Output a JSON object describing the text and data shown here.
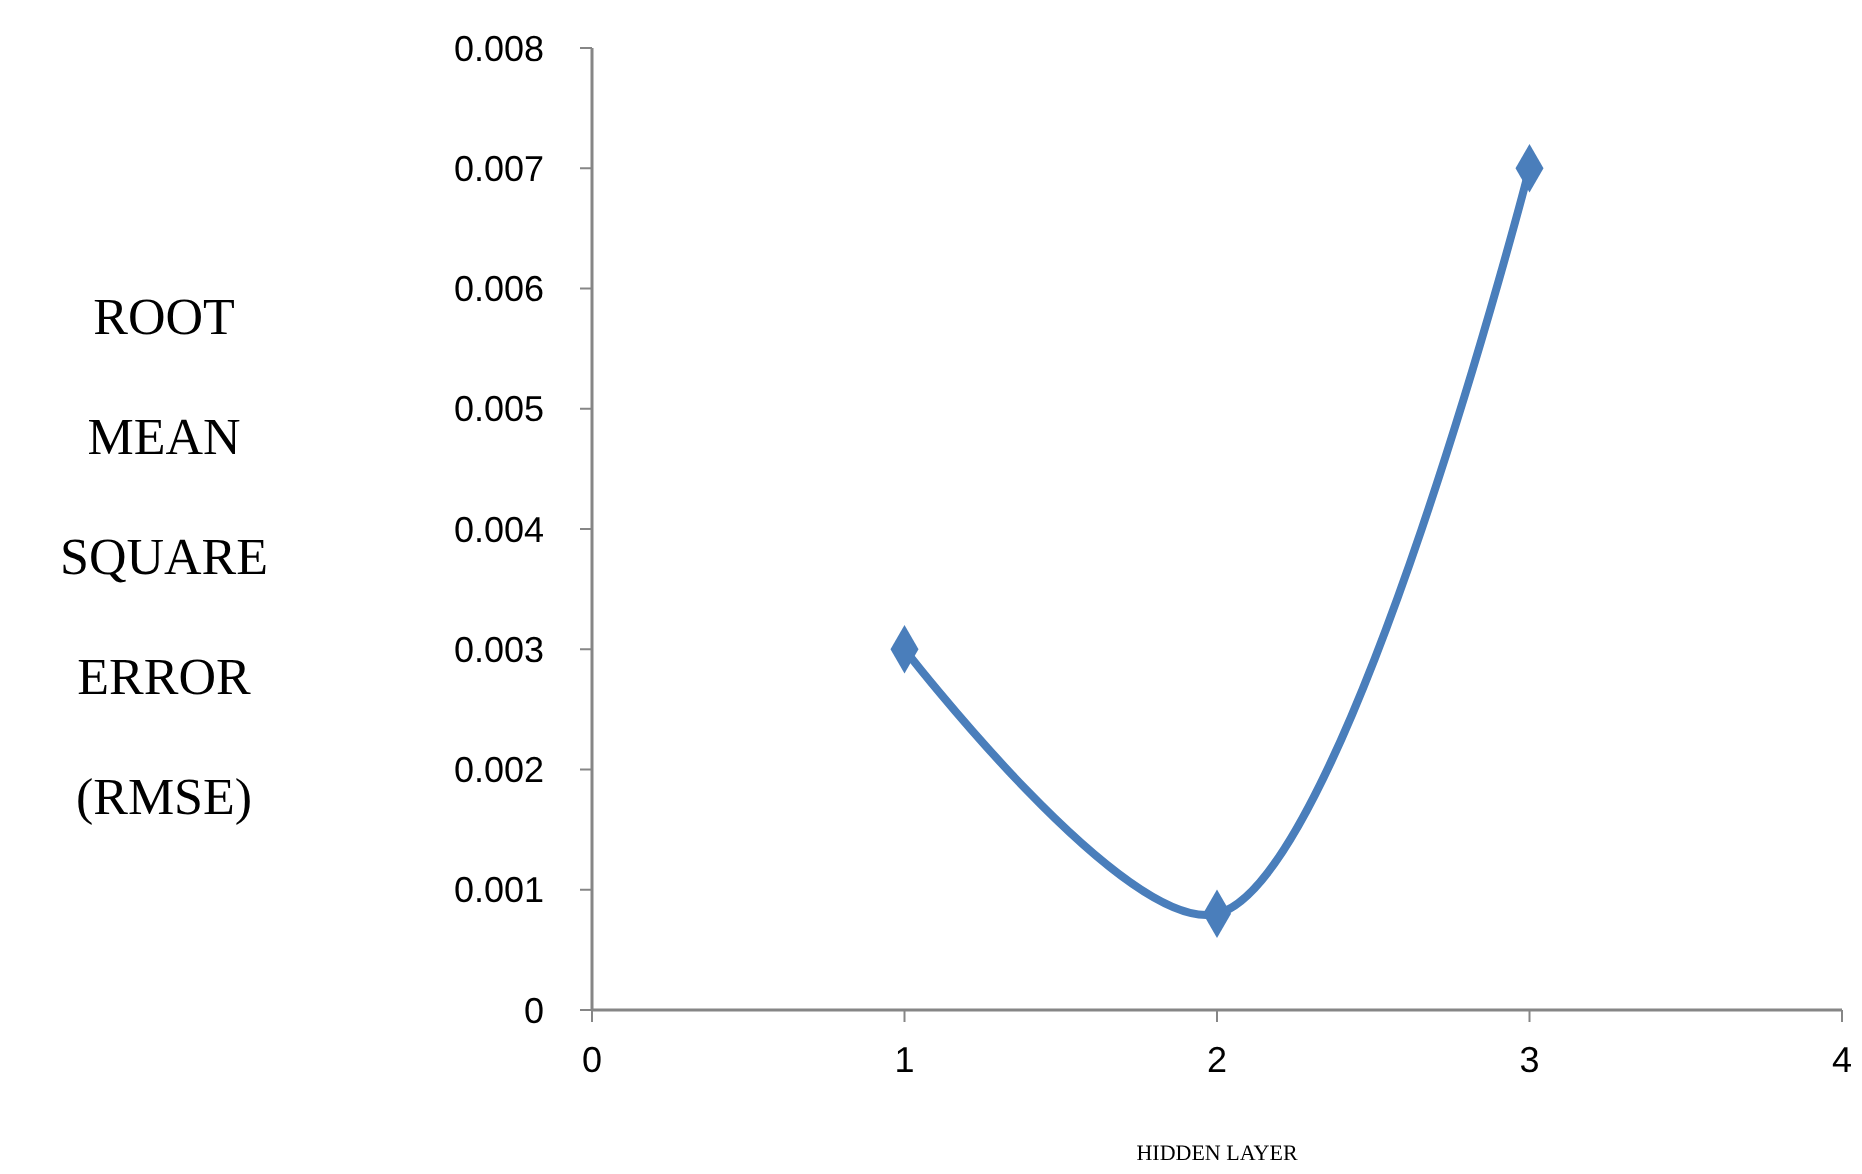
{
  "chart_data": {
    "type": "line",
    "xlabel": "HIDDEN LAYER",
    "ylabel": "ROOT MEAN SQUARE ERROR (RMSE)",
    "x": [
      1,
      2,
      3
    ],
    "series": [
      {
        "color": "#4a7ebb",
        "values": [
          0.003,
          0.0008,
          0.007
        ]
      }
    ],
    "xlim": [
      0,
      4
    ],
    "xticks": [
      0,
      1,
      2,
      3,
      4
    ],
    "ylim": [
      0,
      0.008
    ],
    "yticks": [
      {
        "value": 0,
        "label": "0"
      },
      {
        "value": 0.001,
        "label": "0.001"
      },
      {
        "value": 0.002,
        "label": "0.002"
      },
      {
        "value": 0.003,
        "label": "0.003"
      },
      {
        "value": 0.004,
        "label": "0.004"
      },
      {
        "value": 0.005,
        "label": "0.005"
      },
      {
        "value": 0.006,
        "label": "0.006"
      },
      {
        "value": 0.007,
        "label": "0.007"
      },
      {
        "value": 0.008,
        "label": "0.008"
      }
    ],
    "grid": false,
    "marker": "diamond",
    "line_style": "solid"
  }
}
